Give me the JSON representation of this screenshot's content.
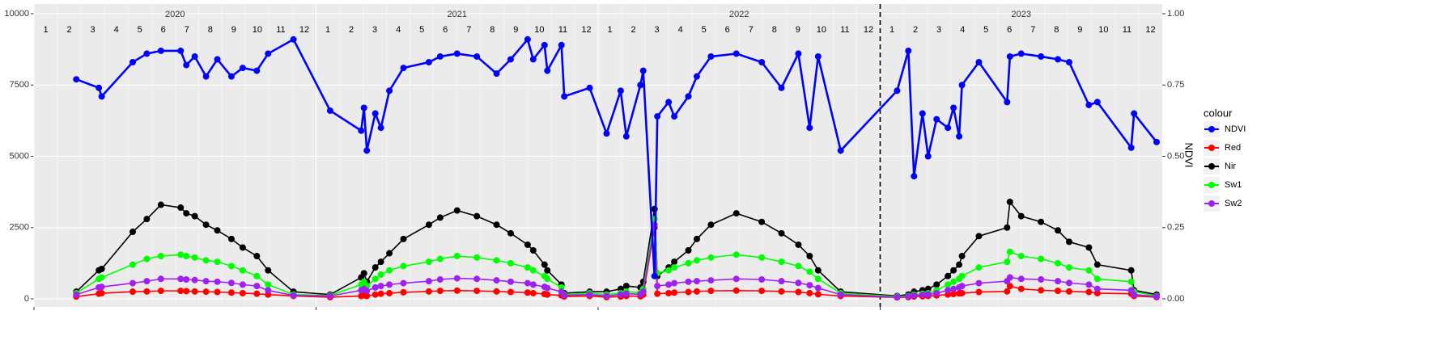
{
  "chart_data": {
    "type": "line",
    "years": [
      2020,
      2021,
      2022,
      2023
    ],
    "months": [
      1,
      2,
      3,
      4,
      5,
      6,
      7,
      8,
      9,
      10,
      11,
      12
    ],
    "xlim": [
      2020,
      2024
    ],
    "xticks": [
      2020,
      2021,
      2022,
      2023
    ],
    "vline": 2023,
    "ylim": [
      -283,
      10340
    ],
    "yticks": [
      0,
      2500,
      5000,
      7500,
      10000
    ],
    "y2lim": [
      -0.0283,
      1.034
    ],
    "y2ticks": [
      {
        "value": 0,
        "label": "0.00"
      },
      {
        "value": 0.25,
        "label": "0.25"
      },
      {
        "value": 0.5,
        "label": "0.50"
      },
      {
        "value": 0.75,
        "label": "0.75"
      },
      {
        "value": 1,
        "label": "1.00"
      }
    ],
    "y2_label": "NDVI",
    "legend_title": "colour",
    "grid": true,
    "x": [
      2020.15,
      2020.23,
      2020.24,
      2020.35,
      2020.4,
      2020.45,
      2020.52,
      2020.54,
      2020.57,
      2020.61,
      2020.65,
      2020.7,
      2020.74,
      2020.79,
      2020.83,
      2020.92,
      2021.05,
      2021.16,
      2021.17,
      2021.18,
      2021.21,
      2021.23,
      2021.26,
      2021.31,
      2021.4,
      2021.44,
      2021.5,
      2021.57,
      2021.64,
      2021.69,
      2021.75,
      2021.77,
      2021.81,
      2021.82,
      2021.87,
      2021.88,
      2021.97,
      2022.03,
      2022.08,
      2022.1,
      2022.15,
      2022.16,
      2022.2,
      2022.21,
      2022.25,
      2022.27,
      2022.32,
      2022.35,
      2022.4,
      2022.49,
      2022.58,
      2022.65,
      2022.71,
      2022.75,
      2022.78,
      2022.86,
      2023.06,
      2023.1,
      2023.12,
      2023.15,
      2023.17,
      2023.2,
      2023.24,
      2023.26,
      2023.28,
      2023.29,
      2023.35,
      2023.45,
      2023.46,
      2023.5,
      2023.57,
      2023.63,
      2023.67,
      2023.74,
      2023.77,
      2023.89,
      2023.9,
      2023.98
    ],
    "series": [
      {
        "name": "NDVI",
        "color": "#0000ff",
        "axis": "y2",
        "values": [
          0.77,
          0.74,
          0.71,
          0.83,
          0.86,
          0.87,
          0.87,
          0.82,
          0.85,
          0.78,
          0.84,
          0.78,
          0.81,
          0.8,
          0.86,
          0.91,
          0.66,
          0.59,
          0.67,
          0.52,
          0.65,
          0.6,
          0.73,
          0.81,
          0.83,
          0.85,
          0.86,
          0.85,
          0.79,
          0.84,
          0.91,
          0.84,
          0.89,
          0.8,
          0.89,
          0.71,
          0.74,
          0.58,
          0.73,
          0.57,
          0.75,
          0.8,
          0.08,
          0.64,
          0.69,
          0.64,
          0.71,
          0.78,
          0.85,
          0.86,
          0.83,
          0.74,
          0.86,
          0.6,
          0.85,
          0.52,
          0.73,
          0.87,
          0.43,
          0.65,
          0.5,
          0.63,
          0.6,
          0.67,
          0.57,
          0.75,
          0.83,
          0.69,
          0.85,
          0.86,
          0.85,
          0.84,
          0.83,
          0.68,
          0.69,
          0.53,
          0.65,
          0.55
        ]
      },
      {
        "name": "Red",
        "color": "#ff0000",
        "values": [
          80,
          180,
          200,
          250,
          260,
          280,
          280,
          270,
          260,
          250,
          240,
          220,
          200,
          180,
          150,
          100,
          60,
          100,
          120,
          100,
          150,
          180,
          200,
          230,
          260,
          280,
          290,
          280,
          260,
          240,
          220,
          200,
          170,
          150,
          120,
          80,
          100,
          60,
          80,
          100,
          90,
          150,
          2500,
          180,
          200,
          220,
          240,
          260,
          280,
          290,
          280,
          260,
          240,
          200,
          160,
          100,
          50,
          60,
          80,
          90,
          100,
          120,
          150,
          170,
          190,
          200,
          240,
          260,
          450,
          350,
          300,
          280,
          260,
          240,
          200,
          180,
          100,
          60
        ]
      },
      {
        "name": "Nir",
        "color": "#000000",
        "values": [
          250,
          1000,
          1050,
          2350,
          2800,
          3300,
          3200,
          3000,
          2900,
          2600,
          2400,
          2100,
          1800,
          1500,
          1000,
          250,
          150,
          750,
          900,
          600,
          1100,
          1300,
          1600,
          2100,
          2600,
          2850,
          3100,
          2900,
          2600,
          2300,
          1900,
          1700,
          1200,
          1000,
          500,
          200,
          250,
          250,
          350,
          450,
          400,
          600,
          3150,
          800,
          1100,
          1300,
          1700,
          2100,
          2600,
          3000,
          2700,
          2300,
          1900,
          1500,
          1000,
          250,
          100,
          150,
          250,
          300,
          350,
          500,
          800,
          1000,
          1200,
          1500,
          2200,
          2500,
          3400,
          2900,
          2700,
          2400,
          2000,
          1800,
          1200,
          1000,
          300,
          150
        ]
      },
      {
        "name": "Sw1",
        "color": "#00ff00",
        "values": [
          200,
          700,
          750,
          1200,
          1400,
          1500,
          1550,
          1500,
          1450,
          1350,
          1300,
          1150,
          1000,
          800,
          500,
          150,
          120,
          500,
          600,
          450,
          700,
          850,
          1000,
          1150,
          1300,
          1400,
          1500,
          1450,
          1350,
          1250,
          1100,
          1000,
          800,
          700,
          400,
          150,
          200,
          150,
          200,
          250,
          220,
          350,
          2800,
          900,
          1000,
          1100,
          1250,
          1350,
          1450,
          1550,
          1450,
          1300,
          1150,
          950,
          700,
          200,
          80,
          100,
          150,
          180,
          200,
          300,
          500,
          600,
          700,
          800,
          1100,
          1300,
          1650,
          1500,
          1400,
          1250,
          1100,
          1000,
          700,
          600,
          250,
          100
        ]
      },
      {
        "name": "Sw2",
        "color": "#a020f0",
        "values": [
          150,
          400,
          420,
          550,
          620,
          700,
          700,
          680,
          660,
          620,
          600,
          560,
          500,
          450,
          300,
          120,
          100,
          300,
          350,
          280,
          400,
          450,
          500,
          550,
          620,
          680,
          720,
          700,
          650,
          600,
          550,
          500,
          420,
          380,
          250,
          120,
          150,
          100,
          150,
          180,
          160,
          250,
          2600,
          450,
          500,
          550,
          600,
          620,
          650,
          700,
          680,
          620,
          560,
          480,
          380,
          150,
          60,
          80,
          120,
          140,
          160,
          200,
          300,
          350,
          400,
          450,
          550,
          620,
          750,
          700,
          680,
          620,
          560,
          500,
          350,
          300,
          150,
          80
        ]
      }
    ]
  }
}
